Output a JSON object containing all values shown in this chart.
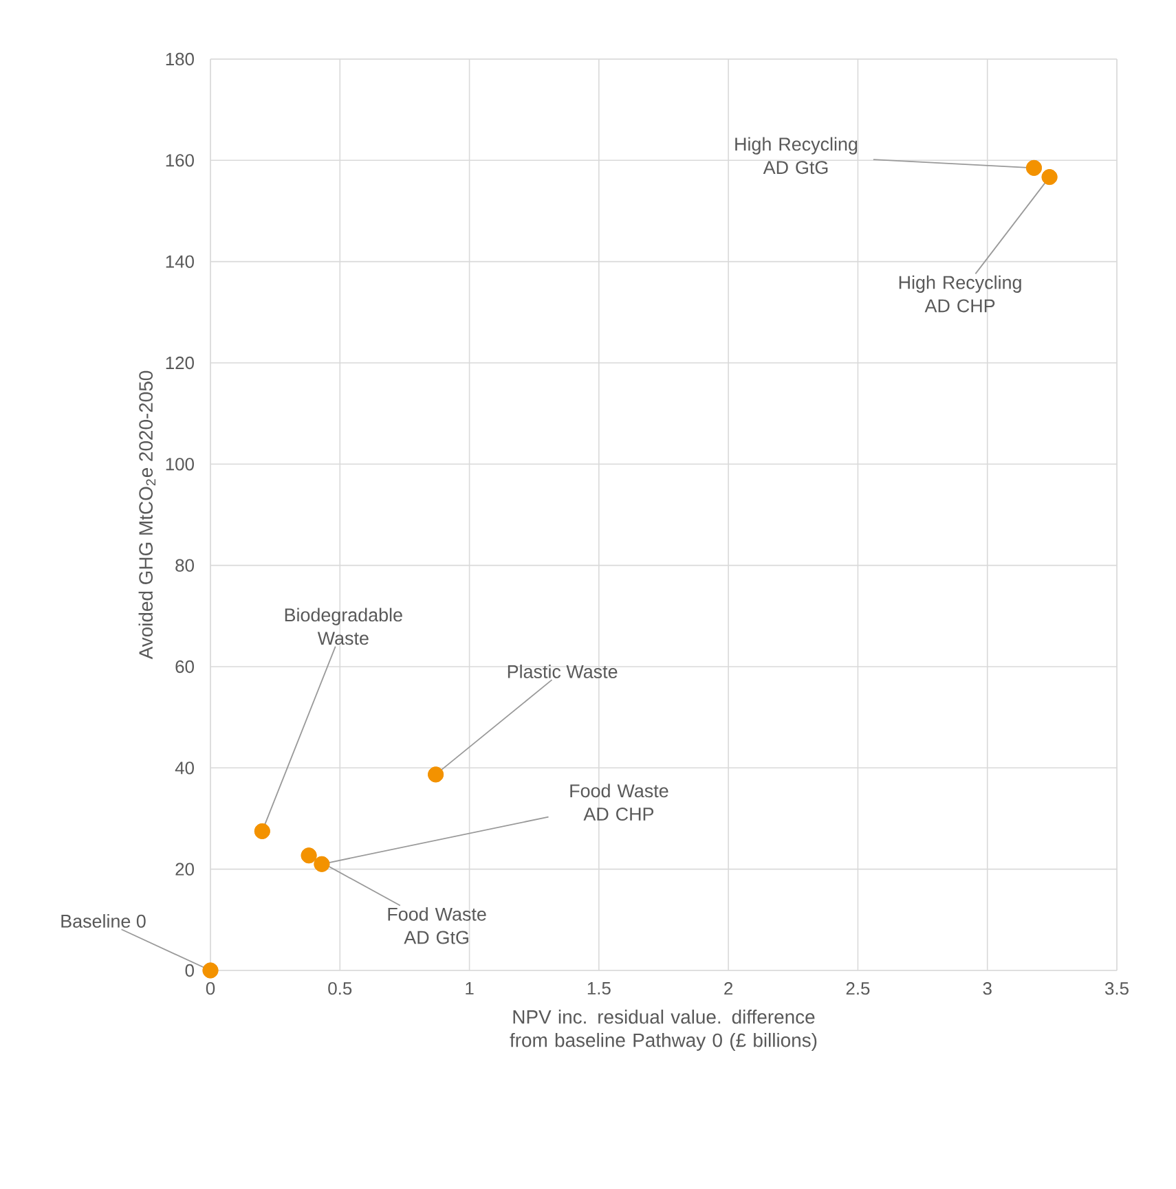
{
  "chart_data": {
    "type": "scatter",
    "xlabel": "NPV inc. residual value. difference from baseline Pathway 0 (£ billions)",
    "ylabel": "Avoided GHG MtCO$_{2}$e 2020-2050",
    "x": [
      0,
      0.2,
      0.87,
      0.43,
      0.38,
      3.18,
      3.24
    ],
    "values": [
      0,
      27.5,
      38.7,
      21,
      22.7,
      158.5,
      156.7
    ],
    "color": "#f39200",
    "marker": "circle",
    "grid": true,
    "xlim": [
      0,
      3.5
    ],
    "xticks": [
      0,
      0.5,
      1,
      1.5,
      2,
      2.5,
      3,
      3.5
    ],
    "ylim": [
      0,
      180
    ],
    "yticks": [
      0,
      20,
      40,
      60,
      80,
      100,
      120,
      140,
      160,
      180
    ],
    "annotations": [
      {
        "text": "Baseline 0",
        "x": 0,
        "y": 0
      },
      {
        "text": "Biodegradable Waste",
        "x": 0.2,
        "y": 27.5
      },
      {
        "text": "Plastic Waste",
        "x": 0.87,
        "y": 38.7
      },
      {
        "text": "Food Waste AD CHP",
        "x": 0.43,
        "y": 21
      },
      {
        "text": "Food Waste AD GtG",
        "x": 0.38,
        "y": 22.7
      },
      {
        "text": "High Recycling AD GtG",
        "x": 3.18,
        "y": 158.5
      },
      {
        "text": "High Recycling AD CHP",
        "x": 3.24,
        "y": 156.7
      }
    ]
  }
}
